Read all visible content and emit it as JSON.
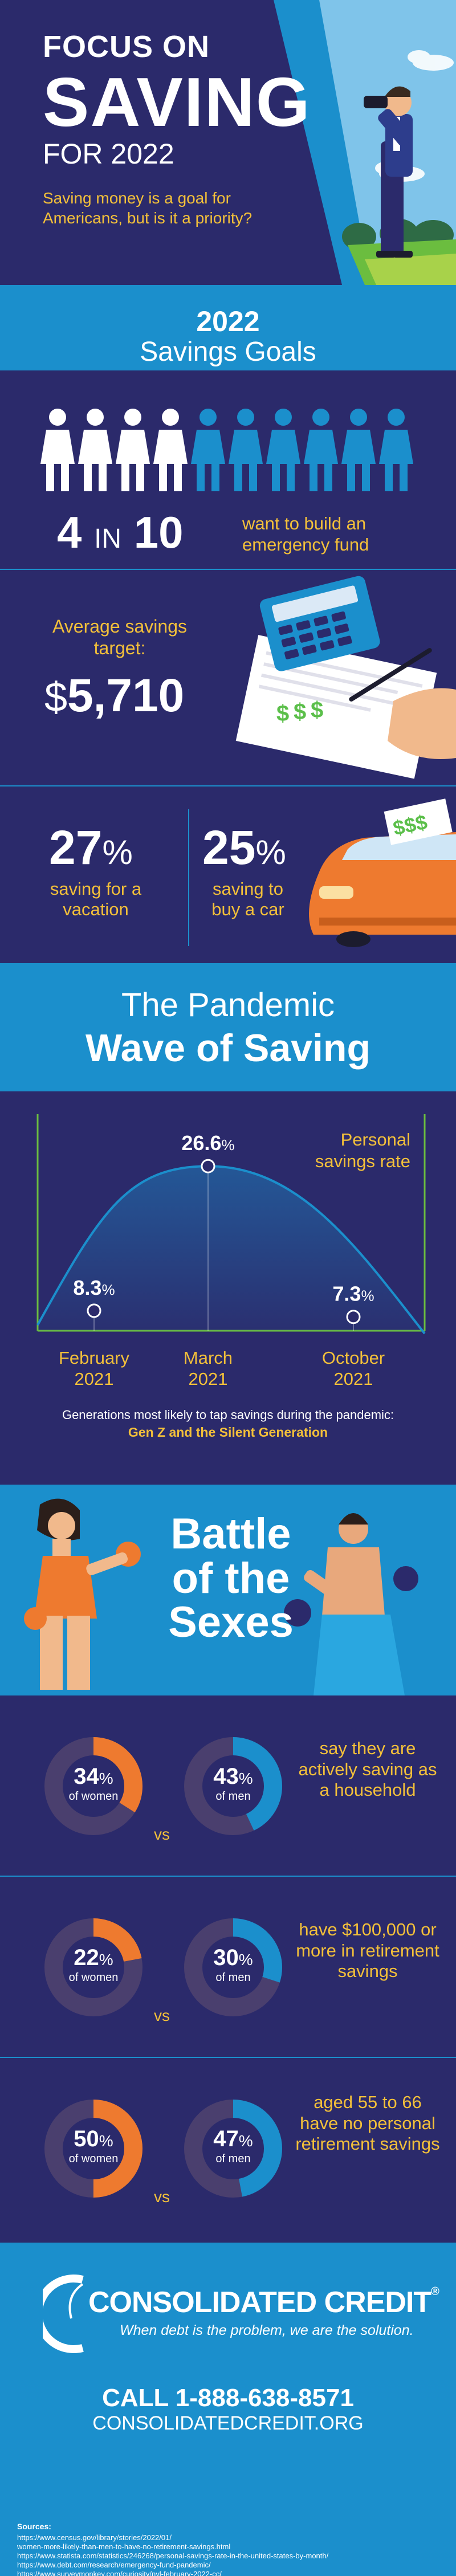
{
  "hero": {
    "title_line1": "FOCUS ON",
    "title_line2": "SAVING",
    "title_line3": "FOR 2022",
    "subtitle": "Saving money is a goal for  Americans, but is it a priority?"
  },
  "goals_banner": {
    "line1": "2022",
    "line2": "Savings Goals"
  },
  "emergency": {
    "number_left": "4",
    "in_word": "IN",
    "number_right": "10",
    "description": "want to build an emergency fund",
    "people_filled": 4,
    "people_total": 10
  },
  "target": {
    "label": "Average savings target:",
    "currency": "$",
    "value": "5,710"
  },
  "vacation_car": {
    "left_value": "27",
    "left_pct": "%",
    "left_label": "saving for a vacation",
    "right_value": "25",
    "right_pct": "%",
    "right_label": "saving to buy a car"
  },
  "pandemic_banner": {
    "line1": "The Pandemic",
    "line2": "Wave of Saving"
  },
  "chart_data": {
    "type": "line",
    "title": "",
    "series": [
      {
        "name": "Personal savings rate",
        "points": [
          {
            "x": "February 2021",
            "y": 8.3
          },
          {
            "x": "March 2021",
            "y": 26.6
          },
          {
            "x": "October 2021",
            "y": 7.3
          }
        ]
      }
    ],
    "point_labels": [
      "8.3",
      "26.6",
      "7.3"
    ],
    "pct_symbol": "%",
    "legend_label": "Personal savings rate",
    "x_labels": [
      {
        "month": "February",
        "year": "2021"
      },
      {
        "month": "March",
        "year": "2021"
      },
      {
        "month": "October",
        "year": "2021"
      }
    ]
  },
  "generations": {
    "note": "Generations most likely to tap savings during the pandemic:",
    "answer": "Gen Z and the Silent Generation"
  },
  "battle": {
    "title_line1": "Battle",
    "title_line2": "of the",
    "title_line3": "Sexes"
  },
  "stats": [
    {
      "women": "34",
      "men": "43",
      "women_fraction": 0.34,
      "men_fraction": 0.43,
      "text": "say they are actively saving as a household"
    },
    {
      "women": "22",
      "men": "30",
      "women_fraction": 0.22,
      "men_fraction": 0.3,
      "text": "have $100,000 or more in retirement savings"
    },
    {
      "women": "50",
      "men": "47",
      "women_fraction": 0.5,
      "men_fraction": 0.47,
      "text": "aged 55 to 66 have no personal retirement savings"
    }
  ],
  "stat_labels": {
    "pct": "%",
    "of_women": "of women",
    "of_men": "of men",
    "vs": "vs"
  },
  "colors": {
    "navy": "#2b2a6b",
    "blue": "#1b8fcc",
    "orange": "#ee7a2f",
    "yellow": "#f3c03a"
  },
  "footer": {
    "brand": "CONSOLIDATED CREDIT",
    "registered": "®",
    "tagline": "When debt is the problem, we are the solution.",
    "call": "CALL 1-888-638-8571",
    "website": "CONSOLIDATEDCREDIT.ORG",
    "sources_title": "Sources:",
    "sources": [
      "https://www.census.gov/library/stories/2022/01/",
      "women-more-likely-than-men-to-have-no-retirement-savings.html",
      "https://www.statista.com/statistics/246268/personal-savings-rate-in-the-united-states-by-month/",
      "https://www.debt.com/research/emergency-fund-pandemic/",
      "https://www.surveymonkey.com/curiosity/nyl-february-2022-cc/"
    ]
  }
}
